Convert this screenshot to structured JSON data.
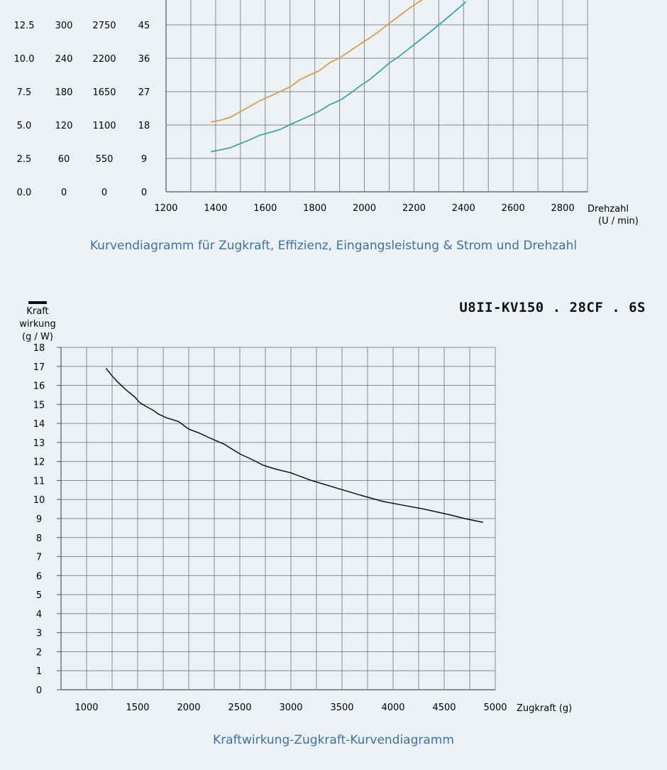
{
  "chart_data": [
    {
      "type": "line",
      "title": "",
      "caption": "Kurvendiagramm für Zugkraft, Effizienz, Eingangsleistung &  Strom und Drehzahl",
      "x": {
        "label": [
          "Drehzahl",
          "(U / min)"
        ],
        "range": [
          1200,
          2900
        ],
        "ticks": [
          1200,
          1400,
          1600,
          1800,
          2000,
          2200,
          2400,
          2600,
          2800
        ]
      },
      "y_columns": [
        {
          "ticks": [
            0.0,
            2.5,
            5.0,
            7.5,
            10.0,
            12.5
          ],
          "tick_labels": [
            "0.0",
            "2.5",
            "5.0",
            "7.5",
            "10.0",
            "12.5"
          ]
        },
        {
          "ticks": [
            0,
            60,
            120,
            180,
            240,
            300
          ]
        },
        {
          "ticks": [
            0,
            550,
            1100,
            1650,
            2200,
            2750
          ]
        },
        {
          "ticks": [
            0,
            9,
            18,
            27,
            36,
            45
          ]
        }
      ],
      "ylim_primary": [
        0,
        51
      ],
      "series": [
        {
          "color": "#d4a04f",
          "axis": 3,
          "x": [
            1380,
            1420,
            1460,
            1500,
            1540,
            1580,
            1620,
            1660,
            1700,
            1740,
            1780,
            1820,
            1860,
            1900,
            1940,
            1980,
            2020,
            2060,
            2100,
            2140,
            2180,
            2220,
            2250
          ],
          "y": [
            18.8,
            19.3,
            20.1,
            21.6,
            23.1,
            24.6,
            25.8,
            27.0,
            28.3,
            30.2,
            31.5,
            32.7,
            34.8,
            36.1,
            37.9,
            39.7,
            41.4,
            43.3,
            45.4,
            47.4,
            49.4,
            51.2,
            52.5
          ]
        },
        {
          "color": "#3aa6aa",
          "axis": 3,
          "x": [
            1380,
            1420,
            1460,
            1500,
            1540,
            1580,
            1620,
            1660,
            1700,
            1740,
            1780,
            1820,
            1860,
            1900,
            1940,
            1980,
            2020,
            2060,
            2100,
            2140,
            2180,
            2220,
            2260,
            2300,
            2340,
            2380,
            2410
          ],
          "y": [
            10.8,
            11.3,
            11.9,
            13.0,
            14.1,
            15.3,
            16.0,
            16.8,
            18.1,
            19.3,
            20.5,
            21.8,
            23.5,
            24.6,
            26.4,
            28.4,
            30.2,
            32.4,
            34.7,
            36.5,
            38.6,
            40.7,
            42.8,
            45.0,
            47.2,
            49.5,
            51.2
          ]
        }
      ]
    },
    {
      "type": "line",
      "title": "U8II-KV150 . 28CF . 6S",
      "caption": "Kraftwirkung-Zugkraft-Kurvendiagramm",
      "xlabel": "Zugkraft (g)",
      "ylabel": [
        "Kraft",
        "wirkung",
        "(g / W)"
      ],
      "xlim": [
        750,
        5000
      ],
      "xticks": [
        1000,
        1500,
        2000,
        2500,
        3000,
        3500,
        4000,
        4500,
        5000
      ],
      "ylim": [
        0,
        18
      ],
      "yticks": [
        0,
        1,
        2,
        3,
        4,
        5,
        6,
        7,
        8,
        9,
        10,
        11,
        12,
        13,
        14,
        15,
        16,
        17,
        18
      ],
      "grid": true,
      "series": [
        {
          "color": "#111111",
          "x": [
            1190,
            1250,
            1300,
            1400,
            1470,
            1520,
            1580,
            1650,
            1700,
            1780,
            1900,
            2000,
            2100,
            2220,
            2350,
            2500,
            2620,
            2730,
            2850,
            3000,
            3200,
            3450,
            3700,
            3900,
            4100,
            4300,
            4550,
            4700,
            4880
          ],
          "y": [
            16.9,
            16.5,
            16.2,
            15.7,
            15.4,
            15.1,
            14.9,
            14.7,
            14.5,
            14.3,
            14.1,
            13.7,
            13.5,
            13.2,
            12.9,
            12.4,
            12.1,
            11.8,
            11.6,
            11.4,
            11.0,
            10.6,
            10.2,
            9.9,
            9.7,
            9.5,
            9.2,
            9.0,
            8.8
          ]
        }
      ]
    }
  ]
}
